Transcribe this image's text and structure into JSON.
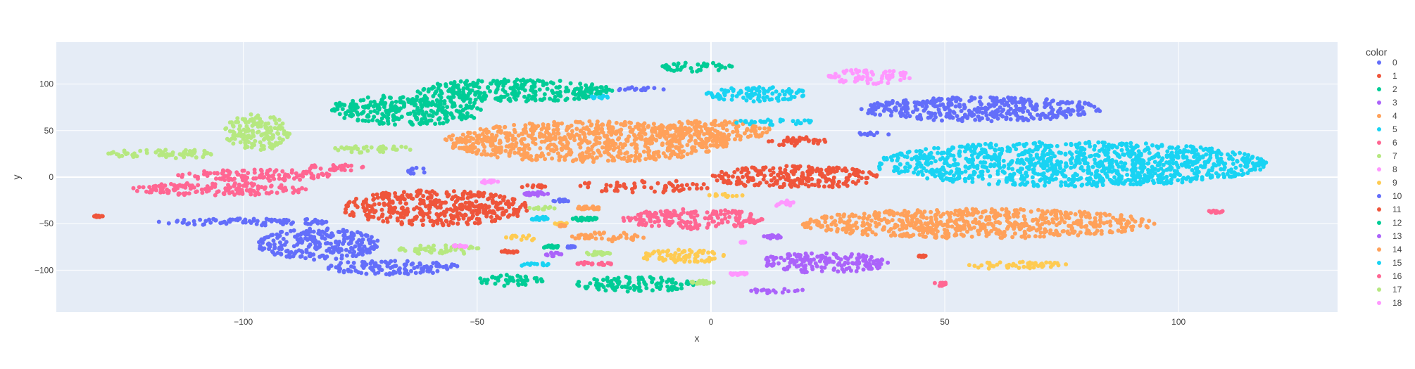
{
  "chart_data": {
    "type": "scatter",
    "title": "",
    "xlabel": "x",
    "ylabel": "y",
    "xlim": [
      -140,
      134
    ],
    "ylim": [
      -145,
      145
    ],
    "x_ticks": [
      -100,
      -50,
      0,
      50,
      100
    ],
    "y_ticks": [
      -100,
      -50,
      0,
      50,
      100
    ],
    "x_tick_labels": [
      "−100",
      "−50",
      "0",
      "50",
      "100"
    ],
    "y_tick_labels": [
      "−100",
      "−50",
      "0",
      "50",
      "100"
    ],
    "grid": true,
    "legend": {
      "title": "color",
      "placement": "right"
    },
    "series": [
      {
        "name": "0",
        "color": "#636EFA",
        "clusters": [
          {
            "cx": 58,
            "cy": 73,
            "rx": 26,
            "ry": 13
          },
          {
            "cx": -100,
            "cy": -48,
            "rx": 19,
            "ry": 4
          },
          {
            "cx": -84,
            "cy": -72,
            "rx": 13,
            "ry": 17
          },
          {
            "cx": -68,
            "cy": -97,
            "rx": 14,
            "ry": 8
          },
          {
            "cx": -15,
            "cy": 94,
            "rx": 5,
            "ry": 3
          },
          {
            "cx": 35,
            "cy": 47,
            "rx": 4,
            "ry": 2
          }
        ]
      },
      {
        "name": "1",
        "color": "#EF553B",
        "clusters": [
          {
            "cx": -59,
            "cy": -33,
            "rx": 20,
            "ry": 19
          },
          {
            "cx": 18,
            "cy": 0,
            "rx": 18,
            "ry": 12
          },
          {
            "cx": 19,
            "cy": 38,
            "rx": 7,
            "ry": 5
          },
          {
            "cx": -15,
            "cy": -10,
            "rx": 15,
            "ry": 7,
            "sparse": true
          },
          {
            "cx": -131,
            "cy": -42,
            "rx": 1,
            "ry": 1
          }
        ]
      },
      {
        "name": "2",
        "color": "#00CC96",
        "clusters": [
          {
            "cx": -65,
            "cy": 72,
            "rx": 17,
            "ry": 16
          },
          {
            "cx": -42,
            "cy": 93,
            "rx": 21,
            "ry": 12
          },
          {
            "cx": -3,
            "cy": 118,
            "rx": 8,
            "ry": 5
          },
          {
            "cx": -16,
            "cy": -115,
            "rx": 13,
            "ry": 8
          },
          {
            "cx": -43,
            "cy": -111,
            "rx": 7,
            "ry": 6
          },
          {
            "cx": -27,
            "cy": -45,
            "rx": 3,
            "ry": 2
          },
          {
            "cx": -34,
            "cy": -75,
            "rx": 2,
            "ry": 1.5
          }
        ]
      },
      {
        "name": "3",
        "color": "#AB63FA",
        "clusters": [
          {
            "cx": 24,
            "cy": -92,
            "rx": 14,
            "ry": 11
          },
          {
            "cx": 14,
            "cy": -122,
            "rx": 6,
            "ry": 3
          },
          {
            "cx": -37,
            "cy": -18,
            "rx": 3,
            "ry": 2
          },
          {
            "cx": 13,
            "cy": -64,
            "rx": 2,
            "ry": 2
          },
          {
            "cx": -34,
            "cy": -83,
            "rx": 2,
            "ry": 2
          }
        ]
      },
      {
        "name": "4",
        "color": "#FFA15A",
        "clusters": [
          {
            "cx": -26,
            "cy": 38,
            "rx": 31,
            "ry": 22
          },
          {
            "cx": 0,
            "cy": 50,
            "rx": 13,
            "ry": 11
          },
          {
            "cx": 57,
            "cy": -50,
            "rx": 38,
            "ry": 16
          },
          {
            "cx": -22,
            "cy": -64,
            "rx": 8,
            "ry": 5
          },
          {
            "cx": -26,
            "cy": -33,
            "rx": 3,
            "ry": 2
          }
        ]
      },
      {
        "name": "5",
        "color": "#19D3F3",
        "clusters": [
          {
            "cx": 77,
            "cy": 14,
            "rx": 42,
            "ry": 24
          },
          {
            "cx": 10,
            "cy": 89,
            "rx": 11,
            "ry": 8
          },
          {
            "cx": 14,
            "cy": 59,
            "rx": 9,
            "ry": 3
          },
          {
            "cx": -38,
            "cy": -94,
            "rx": 4,
            "ry": 2
          },
          {
            "cx": -37,
            "cy": -45,
            "rx": 1.5,
            "ry": 1.5
          }
        ]
      },
      {
        "name": "6",
        "color": "#FF6692",
        "clusters": [
          {
            "cx": -105,
            "cy": -13,
            "rx": 19,
            "ry": 7
          },
          {
            "cx": -97,
            "cy": 2,
            "rx": 17,
            "ry": 6
          },
          {
            "cx": -80,
            "cy": 10,
            "rx": 7,
            "ry": 4
          },
          {
            "cx": -4,
            "cy": -45,
            "rx": 15,
            "ry": 11
          },
          {
            "cx": -25,
            "cy": -93,
            "rx": 4,
            "ry": 2
          },
          {
            "cx": 108,
            "cy": -37,
            "rx": 2,
            "ry": 1.5
          },
          {
            "cx": 49,
            "cy": -115,
            "rx": 2,
            "ry": 2
          }
        ]
      },
      {
        "name": "7",
        "color": "#B6E880",
        "clusters": [
          {
            "cx": -97,
            "cy": 48,
            "rx": 7,
            "ry": 20
          },
          {
            "cx": -117,
            "cy": 25,
            "rx": 12,
            "ry": 5
          },
          {
            "cx": -72,
            "cy": 30,
            "rx": 9,
            "ry": 4
          },
          {
            "cx": -58,
            "cy": -78,
            "rx": 9,
            "ry": 5
          },
          {
            "cx": -36,
            "cy": -33,
            "rx": 3,
            "ry": 2
          },
          {
            "cx": -2,
            "cy": -113,
            "rx": 3,
            "ry": 2
          },
          {
            "cx": -24,
            "cy": -82,
            "rx": 3,
            "ry": 2
          }
        ]
      },
      {
        "name": "8",
        "color": "#FF97FF",
        "clusters": [
          {
            "cx": 34,
            "cy": 108,
            "rx": 9,
            "ry": 8
          },
          {
            "cx": 15,
            "cy": -28,
            "rx": 4,
            "ry": 3
          },
          {
            "cx": -48,
            "cy": -5,
            "rx": 2.5,
            "ry": 1.5
          },
          {
            "cx": -54,
            "cy": -74,
            "rx": 2,
            "ry": 1.5
          },
          {
            "cx": 6,
            "cy": -104,
            "rx": 2,
            "ry": 1.5
          }
        ]
      },
      {
        "name": "9",
        "color": "#FECB52",
        "clusters": [
          {
            "cx": -6,
            "cy": -85,
            "rx": 9,
            "ry": 7
          },
          {
            "cx": 66,
            "cy": -95,
            "rx": 11,
            "ry": 4
          },
          {
            "cx": -40,
            "cy": -65,
            "rx": 4,
            "ry": 3
          },
          {
            "cx": 3,
            "cy": -20,
            "rx": 4,
            "ry": 2
          },
          {
            "cx": -32,
            "cy": -50,
            "rx": 1.5,
            "ry": 1
          }
        ]
      },
      {
        "name": "10",
        "color": "#636EFA",
        "clusters": [
          {
            "cx": -63,
            "cy": 7,
            "rx": 2,
            "ry": 4
          },
          {
            "cx": -32,
            "cy": -25,
            "rx": 2,
            "ry": 1.5
          },
          {
            "cx": -30,
            "cy": -75,
            "rx": 1,
            "ry": 1
          }
        ]
      },
      {
        "name": "11",
        "color": "#EF553B",
        "clusters": [
          {
            "cx": -38,
            "cy": -10,
            "rx": 3,
            "ry": 2
          },
          {
            "cx": -43,
            "cy": -80,
            "rx": 2,
            "ry": 1.5
          },
          {
            "cx": 45,
            "cy": -85,
            "rx": 1,
            "ry": 1
          }
        ]
      },
      {
        "name": "12",
        "color": "#00CC96",
        "clusters": [
          {
            "cx": -27,
            "cy": -45,
            "rx": 3,
            "ry": 2
          },
          {
            "cx": -34,
            "cy": -75,
            "rx": 2,
            "ry": 1.5
          }
        ]
      },
      {
        "name": "13",
        "color": "#AB63FA",
        "clusters": [
          {
            "cx": -37,
            "cy": -18,
            "rx": 3,
            "ry": 2
          },
          {
            "cx": 13,
            "cy": -64,
            "rx": 2,
            "ry": 2
          }
        ]
      },
      {
        "name": "14",
        "color": "#FFA15A",
        "clusters": [
          {
            "cx": -26,
            "cy": -33,
            "rx": 3,
            "ry": 2
          },
          {
            "cx": -32,
            "cy": -52,
            "rx": 1,
            "ry": 1
          }
        ]
      },
      {
        "name": "15",
        "color": "#19D3F3",
        "clusters": [
          {
            "cx": -36,
            "cy": -44,
            "rx": 1.5,
            "ry": 2
          },
          {
            "cx": -24,
            "cy": 86,
            "rx": 2,
            "ry": 1.5
          }
        ]
      },
      {
        "name": "16",
        "color": "#FF6692",
        "clusters": [
          {
            "cx": -25,
            "cy": -93,
            "rx": 4,
            "ry": 2
          }
        ]
      },
      {
        "name": "17",
        "color": "#B6E880",
        "clusters": [
          {
            "cx": -24,
            "cy": -82,
            "rx": 3,
            "ry": 2
          },
          {
            "cx": -2,
            "cy": -113,
            "rx": 3,
            "ry": 2
          }
        ]
      },
      {
        "name": "18",
        "color": "#FF97FF",
        "clusters": [
          {
            "cx": 6,
            "cy": -104,
            "rx": 2,
            "ry": 1.5
          },
          {
            "cx": 7,
            "cy": -70,
            "rx": 0.7,
            "ry": 0.7
          }
        ]
      }
    ]
  }
}
